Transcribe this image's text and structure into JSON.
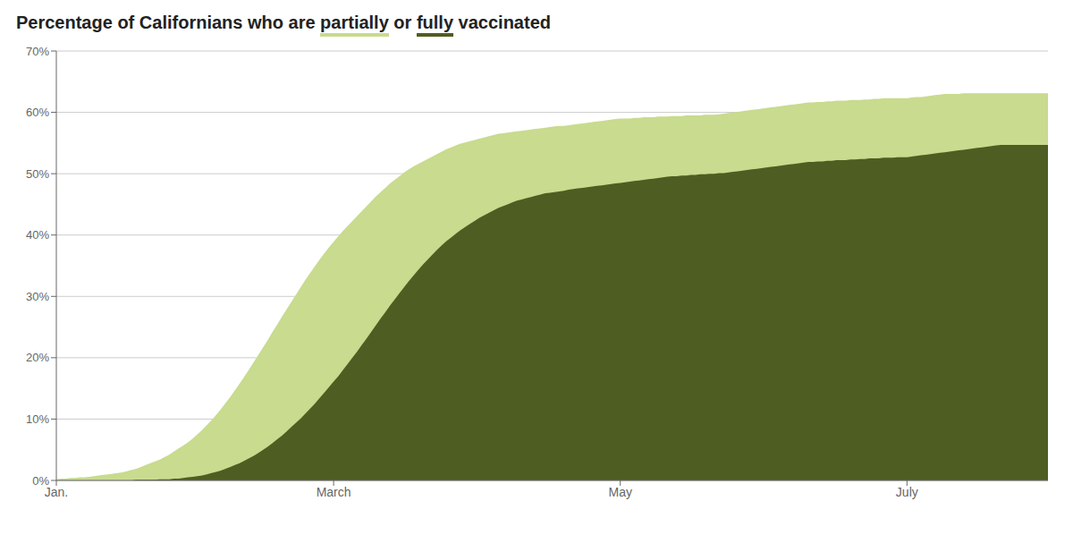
{
  "chart_data": {
    "type": "area",
    "title": "Percentage of Californians who are partially or fully vaccinated",
    "x": [
      0,
      1,
      2,
      3,
      4,
      5,
      6,
      7,
      8,
      9,
      10,
      11,
      12,
      13,
      14,
      15,
      16,
      17,
      18,
      19,
      20,
      21,
      22,
      23,
      24,
      25,
      26,
      27,
      28,
      29,
      30,
      31,
      32,
      33,
      34,
      35,
      36,
      37,
      38,
      39,
      40,
      41,
      42,
      43,
      44,
      45,
      46,
      47,
      48,
      49,
      50,
      51,
      52,
      53,
      54,
      55,
      56,
      57,
      58,
      59,
      60,
      61,
      62,
      63,
      64,
      65,
      66,
      67,
      68,
      69,
      70,
      71,
      72,
      73,
      74,
      75,
      76,
      77,
      78,
      79,
      80,
      81,
      82,
      83,
      84,
      85,
      86,
      87,
      88,
      89,
      90,
      91,
      92,
      93,
      94,
      95,
      96,
      97,
      98,
      99,
      100,
      101,
      102,
      103,
      104,
      105,
      106,
      107,
      108,
      109,
      110,
      111,
      112,
      113,
      114,
      115,
      116,
      117,
      118,
      119,
      120,
      121,
      122,
      123,
      124,
      125,
      126,
      127,
      128,
      129,
      130,
      131,
      132,
      133,
      134,
      135,
      136,
      137,
      138,
      139,
      140,
      141,
      142,
      143,
      144,
      145,
      146,
      147,
      148,
      149,
      150,
      151,
      152,
      153,
      154,
      155,
      156,
      157,
      158,
      159,
      160,
      161,
      162,
      163,
      164,
      165,
      166,
      167,
      168,
      169,
      170,
      171,
      172,
      173,
      174,
      175,
      176,
      177,
      178,
      179,
      180,
      181,
      182,
      183,
      184,
      185,
      186,
      187,
      188,
      189,
      190,
      191,
      192,
      193,
      194,
      195,
      196,
      197,
      198,
      199,
      200,
      201,
      202,
      203,
      204,
      205,
      206,
      207,
      208,
      209,
      210,
      211
    ],
    "series": [
      {
        "name": "partially",
        "color": "#c8dB8e",
        "values": [
          0.002,
          0.003,
          0.003,
          0.004,
          0.004,
          0.005,
          0.005,
          0.006,
          0.007,
          0.008,
          0.009,
          0.01,
          0.011,
          0.012,
          0.013,
          0.015,
          0.017,
          0.019,
          0.022,
          0.025,
          0.028,
          0.031,
          0.034,
          0.038,
          0.042,
          0.047,
          0.052,
          0.057,
          0.062,
          0.068,
          0.075,
          0.082,
          0.09,
          0.098,
          0.107,
          0.116,
          0.126,
          0.136,
          0.147,
          0.158,
          0.169,
          0.181,
          0.193,
          0.205,
          0.217,
          0.229,
          0.242,
          0.254,
          0.267,
          0.279,
          0.291,
          0.303,
          0.315,
          0.327,
          0.338,
          0.349,
          0.36,
          0.37,
          0.38,
          0.389,
          0.398,
          0.407,
          0.415,
          0.423,
          0.431,
          0.439,
          0.447,
          0.455,
          0.463,
          0.47,
          0.477,
          0.484,
          0.49,
          0.496,
          0.502,
          0.507,
          0.512,
          0.516,
          0.52,
          0.524,
          0.528,
          0.532,
          0.536,
          0.54,
          0.543,
          0.546,
          0.549,
          0.551,
          0.553,
          0.555,
          0.557,
          0.559,
          0.561,
          0.563,
          0.565,
          0.566,
          0.567,
          0.568,
          0.569,
          0.57,
          0.571,
          0.572,
          0.573,
          0.574,
          0.575,
          0.576,
          0.577,
          0.578,
          0.578,
          0.579,
          0.58,
          0.581,
          0.582,
          0.583,
          0.584,
          0.585,
          0.586,
          0.587,
          0.588,
          0.589,
          0.59,
          0.59,
          0.59,
          0.591,
          0.591,
          0.592,
          0.592,
          0.592,
          0.593,
          0.593,
          0.593,
          0.594,
          0.594,
          0.594,
          0.595,
          0.595,
          0.595,
          0.595,
          0.596,
          0.596,
          0.596,
          0.597,
          0.598,
          0.599,
          0.6,
          0.601,
          0.602,
          0.603,
          0.604,
          0.605,
          0.606,
          0.607,
          0.608,
          0.609,
          0.61,
          0.611,
          0.612,
          0.613,
          0.614,
          0.615,
          0.616,
          0.616,
          0.617,
          0.617,
          0.618,
          0.618,
          0.619,
          0.619,
          0.619,
          0.62,
          0.62,
          0.62,
          0.621,
          0.621,
          0.622,
          0.622,
          0.623,
          0.623,
          0.623,
          0.623,
          0.623,
          0.623,
          0.624,
          0.625,
          0.625,
          0.626,
          0.627,
          0.628,
          0.629,
          0.63,
          0.63,
          0.63,
          0.63,
          0.631,
          0.631,
          0.631,
          0.631,
          0.631,
          0.631,
          0.631,
          0.631,
          0.631,
          0.631,
          0.631,
          0.631,
          0.631,
          0.631,
          0.631,
          0.631,
          0.631,
          0.631,
          0.631
        ]
      },
      {
        "name": "fully",
        "color": "#4e5e22",
        "values": [
          0.0,
          0.0,
          0.0,
          0.0,
          0.0,
          0.0,
          0.0,
          0.0,
          0.0,
          0.0,
          0.0,
          0.0,
          0.0,
          0.0,
          0.0,
          0.0,
          0.0,
          0.001,
          0.001,
          0.001,
          0.001,
          0.001,
          0.002,
          0.002,
          0.002,
          0.003,
          0.003,
          0.004,
          0.005,
          0.006,
          0.007,
          0.008,
          0.01,
          0.012,
          0.014,
          0.016,
          0.019,
          0.022,
          0.025,
          0.028,
          0.032,
          0.036,
          0.04,
          0.045,
          0.05,
          0.055,
          0.061,
          0.067,
          0.073,
          0.08,
          0.087,
          0.094,
          0.101,
          0.109,
          0.117,
          0.125,
          0.134,
          0.143,
          0.152,
          0.161,
          0.17,
          0.18,
          0.19,
          0.2,
          0.21,
          0.221,
          0.231,
          0.242,
          0.253,
          0.264,
          0.274,
          0.285,
          0.295,
          0.305,
          0.315,
          0.325,
          0.334,
          0.343,
          0.352,
          0.36,
          0.368,
          0.376,
          0.383,
          0.39,
          0.396,
          0.402,
          0.408,
          0.413,
          0.418,
          0.423,
          0.428,
          0.432,
          0.436,
          0.44,
          0.444,
          0.447,
          0.45,
          0.453,
          0.456,
          0.458,
          0.46,
          0.462,
          0.464,
          0.466,
          0.468,
          0.469,
          0.47,
          0.471,
          0.472,
          0.474,
          0.475,
          0.476,
          0.477,
          0.478,
          0.479,
          0.48,
          0.481,
          0.482,
          0.483,
          0.484,
          0.485,
          0.486,
          0.487,
          0.488,
          0.489,
          0.49,
          0.491,
          0.492,
          0.493,
          0.494,
          0.495,
          0.496,
          0.496,
          0.497,
          0.497,
          0.498,
          0.498,
          0.499,
          0.499,
          0.5,
          0.5,
          0.501,
          0.501,
          0.502,
          0.503,
          0.504,
          0.505,
          0.506,
          0.507,
          0.508,
          0.509,
          0.51,
          0.511,
          0.512,
          0.513,
          0.514,
          0.515,
          0.516,
          0.517,
          0.518,
          0.519,
          0.519,
          0.52,
          0.52,
          0.521,
          0.521,
          0.522,
          0.522,
          0.522,
          0.523,
          0.523,
          0.524,
          0.524,
          0.525,
          0.525,
          0.525,
          0.526,
          0.526,
          0.526,
          0.527,
          0.527,
          0.527,
          0.528,
          0.529,
          0.53,
          0.531,
          0.532,
          0.533,
          0.534,
          0.535,
          0.536,
          0.537,
          0.538,
          0.539,
          0.54,
          0.541,
          0.542,
          0.543,
          0.544,
          0.545,
          0.546,
          0.547,
          0.547,
          0.547,
          0.547,
          0.547,
          0.547,
          0.547,
          0.547,
          0.547,
          0.547,
          0.547
        ]
      }
    ],
    "xlim": [
      0,
      211
    ],
    "xticks": [
      {
        "value": 0,
        "label": "Jan."
      },
      {
        "value": 59,
        "label": "March"
      },
      {
        "value": 120,
        "label": "May"
      },
      {
        "value": 181,
        "label": "July"
      }
    ],
    "ylim": [
      0,
      0.7
    ],
    "yticks": [
      {
        "value": 0,
        "label": "0%"
      },
      {
        "value": 0.1,
        "label": "10%"
      },
      {
        "value": 0.2,
        "label": "20%"
      },
      {
        "value": 0.3,
        "label": "30%"
      },
      {
        "value": 0.4,
        "label": "40%"
      },
      {
        "value": 0.5,
        "label": "50%"
      },
      {
        "value": 0.6,
        "label": "60%"
      },
      {
        "value": 0.7,
        "label": "70%"
      }
    ],
    "grid": true
  }
}
